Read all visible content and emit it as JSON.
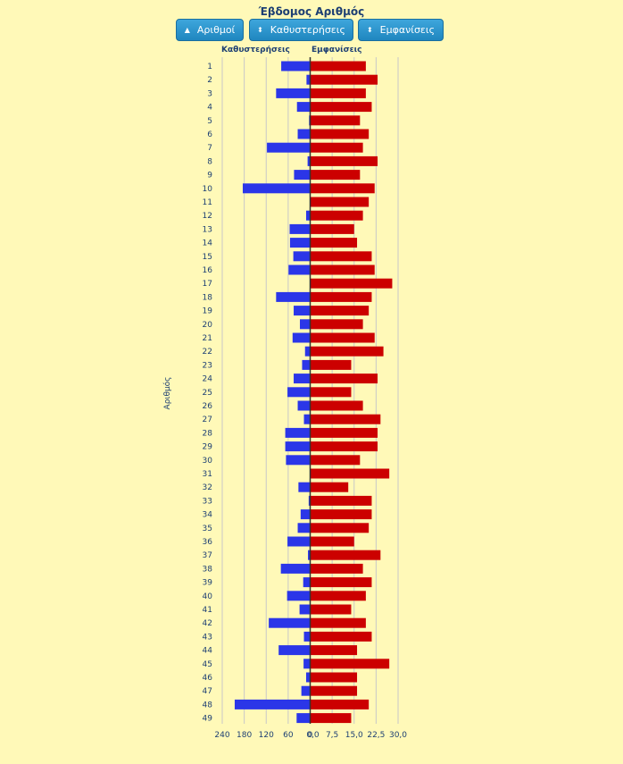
{
  "header": {
    "title": "Έβδομος Αριθμός"
  },
  "buttons": [
    {
      "label": "Αριθμοί",
      "icon": "triangle-up-icon"
    },
    {
      "label": "Καθυστερήσεις",
      "icon": "sort-icon"
    },
    {
      "label": "Εμφανίσεις",
      "icon": "sort-icon"
    }
  ],
  "chart_data": {
    "type": "bar",
    "orientation": "horizontal-diverging",
    "ylabel": "Αριθμός",
    "categories": [
      1,
      2,
      3,
      4,
      5,
      6,
      7,
      8,
      9,
      10,
      11,
      12,
      13,
      14,
      15,
      16,
      17,
      18,
      19,
      20,
      21,
      22,
      23,
      24,
      25,
      26,
      27,
      28,
      29,
      30,
      31,
      32,
      33,
      34,
      35,
      36,
      37,
      38,
      39,
      40,
      41,
      42,
      43,
      44,
      45,
      46,
      47,
      48,
      49
    ],
    "series": [
      {
        "name": "Καθυστερήσεις",
        "color": "#2b36e8",
        "side": "left",
        "axis_ticks": [
          "240",
          "180",
          "120",
          "60",
          "0"
        ],
        "xlim": [
          0,
          240
        ],
        "values": [
          79,
          10,
          93,
          36,
          3,
          34,
          118,
          7,
          44,
          184,
          0,
          11,
          56,
          55,
          46,
          59,
          0,
          93,
          45,
          28,
          48,
          14,
          22,
          45,
          62,
          34,
          17,
          68,
          68,
          66,
          0,
          32,
          4,
          26,
          34,
          62,
          6,
          80,
          19,
          63,
          29,
          113,
          17,
          86,
          18,
          11,
          24,
          206,
          37
        ]
      },
      {
        "name": "Εμφανίσεις",
        "color": "#cc0000",
        "side": "right",
        "axis_ticks": [
          "0,0",
          "7,5",
          "15,0",
          "22,5",
          "30,0"
        ],
        "xlim": [
          0,
          30
        ],
        "values": [
          19,
          23,
          19,
          21,
          17,
          20,
          18,
          23,
          17,
          22,
          20,
          18,
          15,
          16,
          21,
          22,
          28,
          21,
          20,
          18,
          22,
          25,
          14,
          23,
          14,
          18,
          24,
          23,
          23,
          17,
          27,
          13,
          21,
          21,
          20,
          15,
          24,
          18,
          21,
          19,
          14,
          19,
          21,
          16,
          27,
          16,
          16,
          20,
          14
        ]
      }
    ]
  }
}
